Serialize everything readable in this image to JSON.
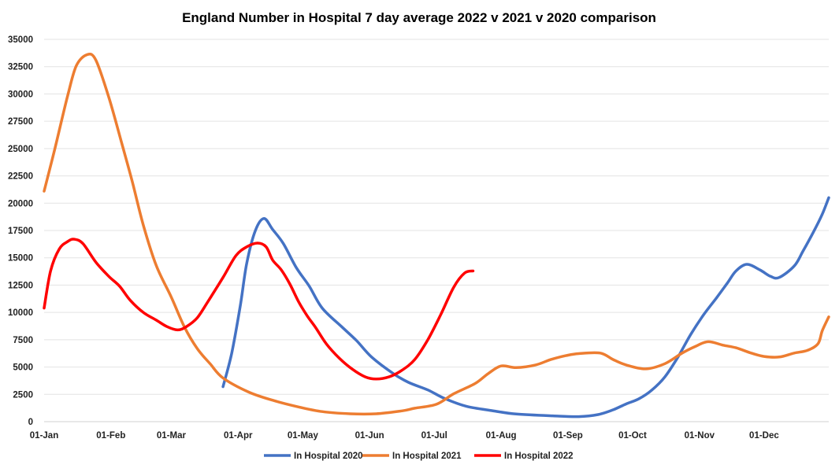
{
  "chart_data": {
    "type": "line",
    "title": "England Number in Hospital 7 day average 2022 v 2021 v 2020 comparison",
    "xlabel": "",
    "ylabel": "",
    "ylim": [
      0,
      35000
    ],
    "yticks": [
      0,
      2500,
      5000,
      7500,
      10000,
      12500,
      15000,
      17500,
      20000,
      22500,
      25000,
      27500,
      30000,
      32500,
      35000
    ],
    "xticks": [
      "01-Jan",
      "01-Feb",
      "01-Mar",
      "01-Apr",
      "01-May",
      "01-Jun",
      "01-Jul",
      "01-Aug",
      "01-Sep",
      "01-Oct",
      "01-Nov",
      "01-Dec"
    ],
    "xlim": [
      "01-Jan",
      "31-Dec"
    ],
    "grid": "horizontal",
    "legend_position": "bottom",
    "series": [
      {
        "name": "In Hospital 2020",
        "color": "#4472C4",
        "points": [
          [
            "25-Mar",
            3200
          ],
          [
            "29-Mar",
            6250
          ],
          [
            "02-Apr",
            10600
          ],
          [
            "05-Apr",
            14500
          ],
          [
            "09-Apr",
            17500
          ],
          [
            "13-Apr",
            18600
          ],
          [
            "17-Apr",
            17600
          ],
          [
            "22-Apr",
            16300
          ],
          [
            "28-Apr",
            14100
          ],
          [
            "04-May",
            12400
          ],
          [
            "10-May",
            10400
          ],
          [
            "19-May",
            8700
          ],
          [
            "26-May",
            7400
          ],
          [
            "02-Jun",
            5900
          ],
          [
            "12-Jun",
            4400
          ],
          [
            "19-Jun",
            3600
          ],
          [
            "28-Jun",
            2900
          ],
          [
            "06-Jul",
            2100
          ],
          [
            "16-Jul",
            1400
          ],
          [
            "28-Jul",
            1000
          ],
          [
            "08-Aug",
            700
          ],
          [
            "25-Aug",
            530
          ],
          [
            "06-Sep",
            460
          ],
          [
            "15-Sep",
            650
          ],
          [
            "22-Sep",
            1090
          ],
          [
            "28-Sep",
            1620
          ],
          [
            "04-Oct",
            2100
          ],
          [
            "10-Oct",
            2900
          ],
          [
            "16-Oct",
            4100
          ],
          [
            "22-Oct",
            5900
          ],
          [
            "28-Oct",
            8000
          ],
          [
            "03-Nov",
            9800
          ],
          [
            "09-Nov",
            11350
          ],
          [
            "14-Nov",
            12700
          ],
          [
            "18-Nov",
            13800
          ],
          [
            "23-Nov",
            14400
          ],
          [
            "29-Nov",
            13900
          ],
          [
            "04-Dec",
            13300
          ],
          [
            "08-Dec",
            13200
          ],
          [
            "15-Dec",
            14250
          ],
          [
            "19-Dec",
            15600
          ],
          [
            "24-Dec",
            17400
          ],
          [
            "28-Dec",
            19000
          ],
          [
            "31-Dec",
            20500
          ]
        ]
      },
      {
        "name": "In Hospital 2021",
        "color": "#ED7D31",
        "points": [
          [
            "01-Jan",
            21100
          ],
          [
            "06-Jan",
            25000
          ],
          [
            "12-Jan",
            29900
          ],
          [
            "16-Jan",
            32600
          ],
          [
            "21-Jan",
            33600
          ],
          [
            "25-Jan",
            33100
          ],
          [
            "31-Jan",
            29700
          ],
          [
            "06-Feb",
            25500
          ],
          [
            "11-Feb",
            21900
          ],
          [
            "16-Feb",
            18000
          ],
          [
            "22-Feb",
            14300
          ],
          [
            "01-Mar",
            11400
          ],
          [
            "07-Mar",
            8700
          ],
          [
            "13-Mar",
            6700
          ],
          [
            "19-Mar",
            5300
          ],
          [
            "25-Mar",
            4000
          ],
          [
            "06-Apr",
            2700
          ],
          [
            "18-Apr",
            1900
          ],
          [
            "29-Apr",
            1350
          ],
          [
            "10-May",
            920
          ],
          [
            "23-May",
            720
          ],
          [
            "04-Jun",
            720
          ],
          [
            "16-Jun",
            990
          ],
          [
            "22-Jun",
            1230
          ],
          [
            "02-Jul",
            1590
          ],
          [
            "10-Jul",
            2550
          ],
          [
            "20-Jul",
            3500
          ],
          [
            "26-Jul",
            4400
          ],
          [
            "01-Aug",
            5100
          ],
          [
            "08-Aug",
            4950
          ],
          [
            "17-Aug",
            5190
          ],
          [
            "24-Aug",
            5680
          ],
          [
            "31-Aug",
            6040
          ],
          [
            "06-Sep",
            6230
          ],
          [
            "16-Sep",
            6280
          ],
          [
            "22-Sep",
            5680
          ],
          [
            "28-Sep",
            5190
          ],
          [
            "07-Oct",
            4830
          ],
          [
            "16-Oct",
            5310
          ],
          [
            "24-Oct",
            6280
          ],
          [
            "30-Oct",
            6880
          ],
          [
            "05-Nov",
            7320
          ],
          [
            "12-Nov",
            7000
          ],
          [
            "18-Nov",
            6760
          ],
          [
            "25-Nov",
            6280
          ],
          [
            "01-Dec",
            5970
          ],
          [
            "08-Dec",
            5920
          ],
          [
            "15-Dec",
            6280
          ],
          [
            "21-Dec",
            6520
          ],
          [
            "26-Dec",
            7130
          ],
          [
            "28-Dec",
            8330
          ],
          [
            "31-Dec",
            9590
          ]
        ]
      },
      {
        "name": "In Hospital 2022",
        "color": "#FF0000",
        "points": [
          [
            "01-Jan",
            10400
          ],
          [
            "04-Jan",
            13800
          ],
          [
            "08-Jan",
            15800
          ],
          [
            "12-Jan",
            16500
          ],
          [
            "15-Jan",
            16700
          ],
          [
            "19-Jan",
            16300
          ],
          [
            "25-Jan",
            14600
          ],
          [
            "31-Jan",
            13300
          ],
          [
            "05-Feb",
            12400
          ],
          [
            "10-Feb",
            11100
          ],
          [
            "16-Feb",
            10000
          ],
          [
            "22-Feb",
            9300
          ],
          [
            "27-Feb",
            8700
          ],
          [
            "04-Mar",
            8400
          ],
          [
            "08-Mar",
            8700
          ],
          [
            "13-Mar",
            9500
          ],
          [
            "18-Mar",
            11000
          ],
          [
            "25-Mar",
            13200
          ],
          [
            "31-Mar",
            15200
          ],
          [
            "05-Apr",
            16000
          ],
          [
            "10-Apr",
            16350
          ],
          [
            "14-Apr",
            16000
          ],
          [
            "17-Apr",
            14800
          ],
          [
            "21-Apr",
            13900
          ],
          [
            "25-Apr",
            12600
          ],
          [
            "29-Apr",
            11000
          ],
          [
            "03-May",
            9700
          ],
          [
            "07-May",
            8600
          ],
          [
            "12-May",
            7100
          ],
          [
            "18-May",
            5800
          ],
          [
            "24-May",
            4800
          ],
          [
            "30-May",
            4100
          ],
          [
            "04-Jun",
            3900
          ],
          [
            "10-Jun",
            4100
          ],
          [
            "16-Jun",
            4700
          ],
          [
            "22-Jun",
            5700
          ],
          [
            "28-Jun",
            7500
          ],
          [
            "04-Jul",
            9800
          ],
          [
            "10-Jul",
            12300
          ],
          [
            "15-Jul",
            13600
          ],
          [
            "19-Jul",
            13800
          ]
        ]
      }
    ]
  }
}
